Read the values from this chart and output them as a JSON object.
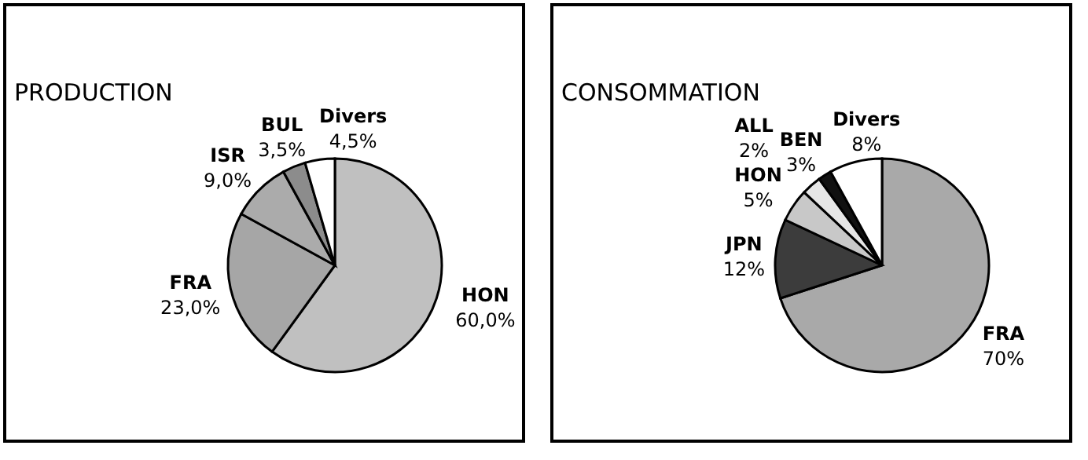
{
  "chart_data": [
    {
      "type": "pie",
      "title": "PRODUCTION",
      "categories": [
        "HON",
        "FRA",
        "ISR",
        "BUL",
        "Divers"
      ],
      "values": [
        60.0,
        23.0,
        9.0,
        3.5,
        4.5
      ],
      "value_labels": [
        "60,0%",
        "23,0%",
        "9,0%",
        "3,5%",
        "4,5%"
      ],
      "colors": [
        "#c0c0c0",
        "#a6a6a6",
        "#ababab",
        "#8c8c8c",
        "#ffffff"
      ],
      "legend": false
    },
    {
      "type": "pie",
      "title": "CONSOMMATION",
      "categories": [
        "FRA",
        "JPN",
        "HON",
        "BEN",
        "ALL",
        "Divers"
      ],
      "values": [
        70,
        12,
        5,
        3,
        2,
        8
      ],
      "value_labels": [
        "70%",
        "12%",
        "5%",
        "3%",
        "2%",
        "8%"
      ],
      "colors": [
        "#a9a9a9",
        "#3c3c3c",
        "#c8c8c8",
        "#e6e6e6",
        "#111111",
        "#ffffff"
      ],
      "legend": false
    }
  ]
}
